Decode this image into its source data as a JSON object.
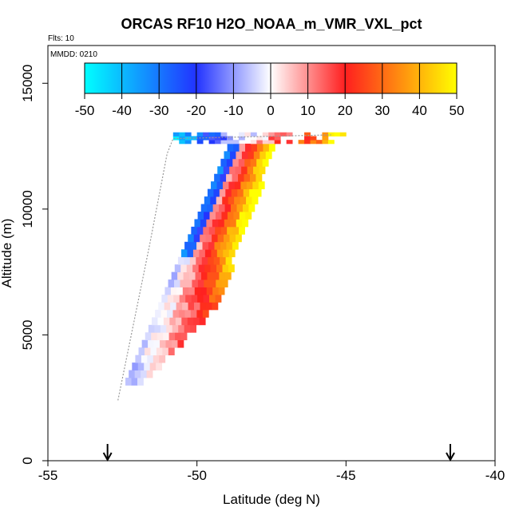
{
  "chart_data": {
    "type": "heatmap",
    "title": "ORCAS RF10 H2O_NOAA_m_VMR_VXL_pct",
    "flights_label": "Flts: 10",
    "date_label": "MMDD: 0210",
    "xlabel": "Latitude (deg N)",
    "ylabel": "Altitude (m)",
    "xlim": [
      -55,
      -40
    ],
    "ylim": [
      0,
      16500
    ],
    "x_ticks": [
      -55,
      -50,
      -45,
      -40
    ],
    "y_ticks": [
      0,
      5000,
      10000,
      15000
    ],
    "colorbar": {
      "range": [
        -50,
        50
      ],
      "ticks": [
        -50,
        -40,
        -30,
        -20,
        -10,
        0,
        10,
        20,
        30,
        40,
        50
      ]
    },
    "markers": [
      {
        "label": "arrow",
        "latitude": -53.0
      },
      {
        "label": "arrow",
        "latitude": -41.5
      }
    ],
    "flight_track": [
      {
        "lat": -52.65,
        "alt": 2400
      },
      {
        "lat": -51.6,
        "alt": 8500
      },
      {
        "lat": -51.0,
        "alt": 12200
      },
      {
        "lat": -50.8,
        "alt": 12800
      },
      {
        "lat": -45.5,
        "alt": 12950
      }
    ],
    "field_notes": {
      "x_bin_deg": 0.2,
      "y_bin_m": 300,
      "lower_edge_low": [
        -52.4,
        3000
      ],
      "lower_edge_high": [
        -48.8,
        12800
      ],
      "value_low_alt": -5,
      "value_high_alt": 55,
      "upper_layer_alt": [
        12600,
        12950
      ],
      "upper_layer_lat": [
        -50.8,
        -45.0
      ]
    }
  }
}
